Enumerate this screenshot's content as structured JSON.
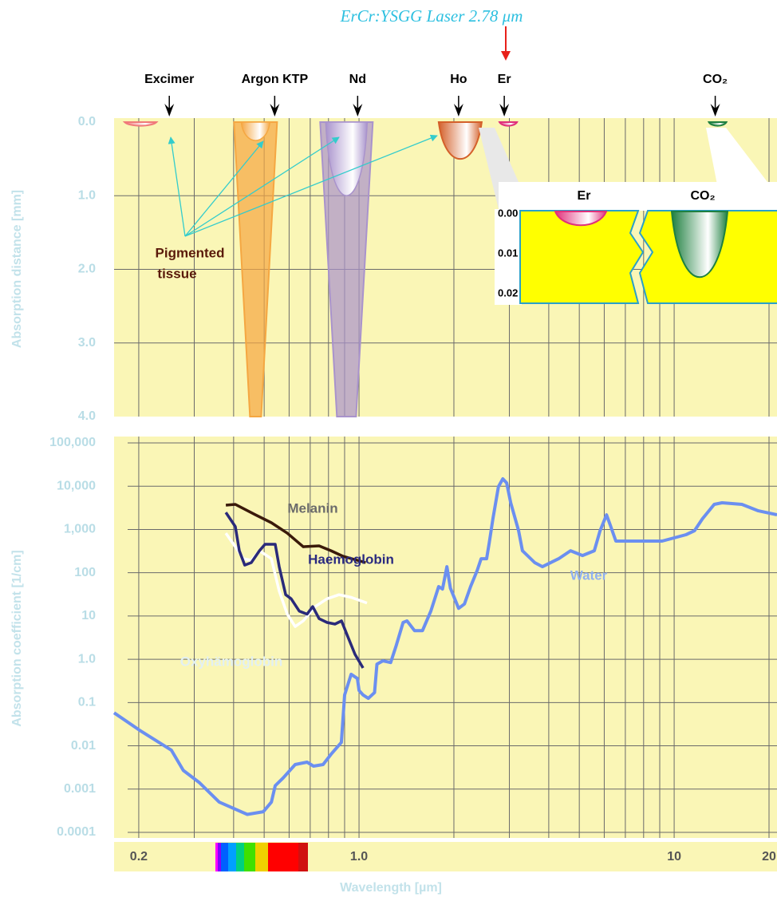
{
  "chart_data": [
    {
      "type": "laser-depth",
      "title": "ErCr:YSGG Laser 2.78 μm",
      "y_label": "Absorption distance [mm]",
      "log_x": true,
      "xlim": [
        0.167,
        21.2
      ],
      "xgrid": [
        0.2,
        0.3,
        0.4,
        0.5,
        0.6,
        0.7,
        0.8,
        0.9,
        1,
        2,
        3,
        4,
        5,
        6,
        7,
        8,
        9,
        10,
        20
      ],
      "ylim": [
        0,
        4
      ],
      "yticks": [
        {
          "value": 0,
          "label": "0.0"
        },
        {
          "value": 1,
          "label": "1.0"
        },
        {
          "value": 2,
          "label": "2.0"
        },
        {
          "value": 3,
          "label": "3.0"
        },
        {
          "value": 4,
          "label": "4.0"
        }
      ],
      "grid": true,
      "annotation": [
        "Pigmented",
        "tissue"
      ],
      "lasers": [
        {
          "name": "Excimer",
          "wavelength": 0.25,
          "depth": 0.05,
          "color": "#f07a7a"
        },
        {
          "name": "Argon KTP",
          "wavelength": 0.54,
          "depth": 4,
          "pigmented_depth": 0.25,
          "color": "#f5a742"
        },
        {
          "name": "Nd",
          "wavelength": 0.99,
          "depth": 4,
          "pigmented_depth": 1.0,
          "color": "#a993cc"
        },
        {
          "name": "Ho",
          "wavelength": 2.07,
          "depth": 0.5,
          "color": "#d4602a"
        },
        {
          "name": "Er",
          "wavelength": 2.89,
          "depth": 0.05,
          "color": "#e0307a"
        },
        {
          "name": "CO₂",
          "wavelength": 13.5,
          "depth": 0.05,
          "color": "#1f8040"
        }
      ]
    },
    {
      "type": "inset",
      "ylim": [
        0,
        0.02
      ],
      "yticks": [
        {
          "value": 0,
          "label": "0.00"
        },
        {
          "value": 0.01,
          "label": "0.01"
        },
        {
          "value": 0.02,
          "label": "0.02"
        }
      ],
      "lasers": [
        {
          "name": "Er",
          "depth": 0.003,
          "color": "#e0307a"
        },
        {
          "name": "CO₂",
          "depth": 0.016,
          "color": "#1f8040"
        }
      ]
    },
    {
      "type": "line",
      "x_label": "Wavelength [µm]",
      "y_label": "Absorption coefficient [1/cm]",
      "log_x": true,
      "log_y": true,
      "xlim": [
        0.167,
        21.2
      ],
      "xticks": [
        0.2,
        {
          "value": 1,
          "label": "1.0"
        },
        10,
        20
      ],
      "xgrid": [
        0.2,
        0.3,
        0.4,
        0.5,
        0.6,
        0.7,
        0.8,
        0.9,
        1,
        2,
        3,
        4,
        5,
        6,
        7,
        8,
        9,
        10,
        20
      ],
      "ylim": [
        0.0001,
        100000
      ],
      "yticks": [
        {
          "value": 100000,
          "label": "100,000"
        },
        {
          "value": 10000,
          "label": "10,000"
        },
        {
          "value": 1000,
          "label": "1,000"
        },
        100,
        10,
        {
          "value": 1,
          "label": "1.0"
        },
        0.1,
        0.01,
        0.001,
        0.0001
      ],
      "grid": true,
      "series": [
        {
          "name": "Water",
          "color": "#6b8ff0",
          "x": [
            0.167,
            0.201,
            0.254,
            0.277,
            0.312,
            0.36,
            0.442,
            0.497,
            0.527,
            0.542,
            0.574,
            0.627,
            0.684,
            0.717,
            0.769,
            0.815,
            0.879,
            0.9,
            0.944,
            0.988,
            1.0,
            1.03,
            1.07,
            1.12,
            1.14,
            1.19,
            1.26,
            1.31,
            1.38,
            1.42,
            1.5,
            1.59,
            1.69,
            1.79,
            1.84,
            1.9,
            1.95,
            2.07,
            2.16,
            2.26,
            2.37,
            2.44,
            2.54,
            2.59,
            2.66,
            2.77,
            2.86,
            2.94,
            3.03,
            3.21,
            3.3,
            3.61,
            3.82,
            4.3,
            4.69,
            5.12,
            5.58,
            5.82,
            6.1,
            6.27,
            6.53,
            7.26,
            9.16,
            10.9,
            11.6,
            12.3,
            13.4,
            14.2,
            16.4,
            18.5,
            21.2
          ],
          "values": [
            0.058,
            0.023,
            0.0079,
            0.0027,
            0.0014,
            0.0005,
            0.00026,
            0.0003,
            0.0005,
            0.0012,
            0.0018,
            0.0037,
            0.0042,
            0.0034,
            0.0037,
            0.0064,
            0.012,
            0.15,
            0.45,
            0.36,
            0.19,
            0.15,
            0.125,
            0.17,
            0.77,
            0.92,
            0.84,
            2.0,
            7.1,
            7.7,
            4.6,
            4.6,
            13,
            48,
            42,
            138,
            44,
            15,
            19,
            48,
            112,
            211,
            211,
            494,
            1770,
            9700,
            14800,
            11900,
            4130,
            934,
            323,
            171,
            138,
            211,
            323,
            250,
            323,
            934,
            2180,
            1260,
            538,
            538,
            538,
            756,
            934,
            1770,
            3800,
            4130,
            3800,
            2700,
            2180
          ]
        },
        {
          "name": "Oxyhämoglobin",
          "color": "#ffffff",
          "x": [
            0.378,
            0.405,
            0.43,
            0.455,
            0.483,
            0.527,
            0.558,
            0.592,
            0.627,
            0.665,
            0.726,
            0.792,
            0.864,
            0.944,
            1.06
          ],
          "values": [
            822,
            399,
            211,
            194,
            323,
            211,
            38,
            11,
            5.7,
            7.7,
            16.5,
            25,
            31,
            27,
            20
          ]
        },
        {
          "name": "Melanin",
          "color": "#3a1a0a",
          "x": [
            0.378,
            0.405,
            0.469,
            0.527,
            0.592,
            0.665,
            0.747,
            0.815,
            0.89,
            1.05
          ],
          "values": [
            3640,
            3800,
            2180,
            1430,
            822,
            399,
            417,
            323,
            240,
            171
          ]
        },
        {
          "name": "Haemoglobin",
          "color": "#2a2a7a",
          "x": [
            0.378,
            0.405,
            0.417,
            0.434,
            0.455,
            0.483,
            0.503,
            0.542,
            0.558,
            0.585,
            0.609,
            0.646,
            0.684,
            0.713,
            0.747,
            0.792,
            0.839,
            0.88,
            0.916,
            0.971,
            1.03
          ],
          "values": [
            2480,
            1160,
            323,
            150,
            171,
            323,
            454,
            454,
            138,
            31,
            25,
            13,
            11,
            16.5,
            8.7,
            7.1,
            6.5,
            7.7,
            3.7,
            1.3,
            0.63
          ]
        }
      ]
    }
  ]
}
